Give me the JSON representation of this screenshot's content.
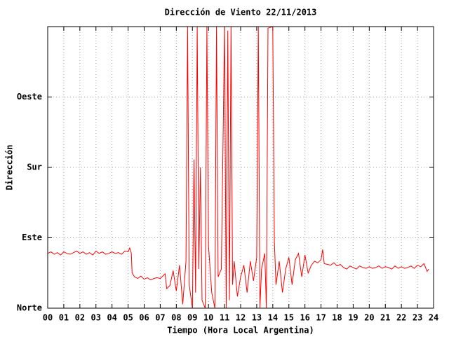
{
  "chart_data": {
    "type": "line",
    "title": "Dirección de Viento 22/11/2013",
    "x_label": "Tiempo (Hora Local Argentina)",
    "y_label": "Dirección",
    "xlim": [
      0,
      24
    ],
    "ylim": [
      0,
      360
    ],
    "grid": true,
    "xticks": [
      {
        "value": 0,
        "label": "00"
      },
      {
        "value": 1,
        "label": "01"
      },
      {
        "value": 2,
        "label": "02"
      },
      {
        "value": 3,
        "label": "03"
      },
      {
        "value": 4,
        "label": "04"
      },
      {
        "value": 5,
        "label": "05"
      },
      {
        "value": 6,
        "label": "06"
      },
      {
        "value": 7,
        "label": "07"
      },
      {
        "value": 8,
        "label": "08"
      },
      {
        "value": 9,
        "label": "09"
      },
      10,
      11,
      12,
      13,
      14,
      15,
      16,
      17,
      18,
      19,
      20,
      21,
      22,
      23,
      24
    ],
    "yticks": [
      {
        "value": 0,
        "label": "Norte"
      },
      {
        "value": 90,
        "label": "Este"
      },
      {
        "value": 180,
        "label": "Sur"
      },
      {
        "value": 270,
        "label": "Oeste"
      }
    ],
    "series": [
      {
        "color": "#ff0000",
        "x": [
          0.0,
          0.2,
          0.4,
          0.6,
          0.8,
          1.0,
          1.2,
          1.4,
          1.6,
          1.8,
          2.0,
          2.2,
          2.4,
          2.6,
          2.8,
          3.0,
          3.2,
          3.4,
          3.6,
          3.8,
          4.0,
          4.2,
          4.4,
          4.6,
          4.8,
          5.0,
          5.1,
          5.2,
          5.25,
          5.4,
          5.6,
          5.8,
          6.0,
          6.2,
          6.4,
          6.6,
          6.8,
          7.0,
          7.2,
          7.3,
          7.4,
          7.6,
          7.8,
          8.0,
          8.2,
          8.4,
          8.6,
          8.7,
          8.8,
          9.0,
          9.1,
          9.2,
          9.3,
          9.4,
          9.5,
          9.6,
          9.8,
          9.9,
          10.0,
          10.2,
          10.4,
          10.5,
          10.6,
          10.8,
          11.0,
          11.1,
          11.2,
          11.3,
          11.4,
          11.5,
          11.6,
          11.8,
          12.0,
          12.2,
          12.4,
          12.6,
          12.8,
          13.0,
          13.1,
          13.2,
          13.3,
          13.5,
          13.6,
          13.7,
          14.0,
          14.1,
          14.2,
          14.4,
          14.6,
          14.8,
          15.0,
          15.2,
          15.4,
          15.6,
          15.8,
          16.0,
          16.2,
          16.4,
          16.6,
          16.8,
          17.0,
          17.1,
          17.2,
          17.4,
          17.6,
          17.8,
          18.0,
          18.2,
          18.4,
          18.6,
          18.8,
          19.0,
          19.2,
          19.4,
          19.6,
          19.8,
          20.0,
          20.2,
          20.4,
          20.6,
          20.8,
          21.0,
          21.2,
          21.4,
          21.6,
          21.8,
          22.0,
          22.2,
          22.4,
          22.6,
          22.8,
          23.0,
          23.2,
          23.4,
          23.6,
          23.7
        ],
        "values": [
          70,
          72,
          69,
          71,
          68,
          72,
          70,
          69,
          71,
          73,
          70,
          72,
          69,
          71,
          68,
          73,
          70,
          72,
          69,
          70,
          72,
          70,
          71,
          69,
          73,
          72,
          77,
          70,
          45,
          40,
          38,
          41,
          37,
          39,
          36,
          38,
          39,
          38,
          42,
          44,
          25,
          29,
          48,
          22,
          55,
          5,
          60,
          360,
          30,
          0,
          190,
          20,
          360,
          50,
          180,
          10,
          0,
          360,
          80,
          20,
          0,
          360,
          40,
          50,
          360,
          0,
          355,
          10,
          360,
          30,
          60,
          15,
          40,
          55,
          20,
          60,
          35,
          65,
          360,
          0,
          50,
          70,
          0,
          358,
          360,
          85,
          30,
          60,
          20,
          50,
          65,
          30,
          62,
          70,
          40,
          68,
          45,
          55,
          60,
          58,
          62,
          75,
          57,
          56,
          55,
          58,
          54,
          56,
          52,
          50,
          54,
          52,
          50,
          54,
          52,
          51,
          53,
          51,
          52,
          54,
          51,
          53,
          52,
          50,
          54,
          51,
          53,
          51,
          52,
          54,
          51,
          55,
          53,
          57,
          47,
          50
        ]
      }
    ]
  }
}
